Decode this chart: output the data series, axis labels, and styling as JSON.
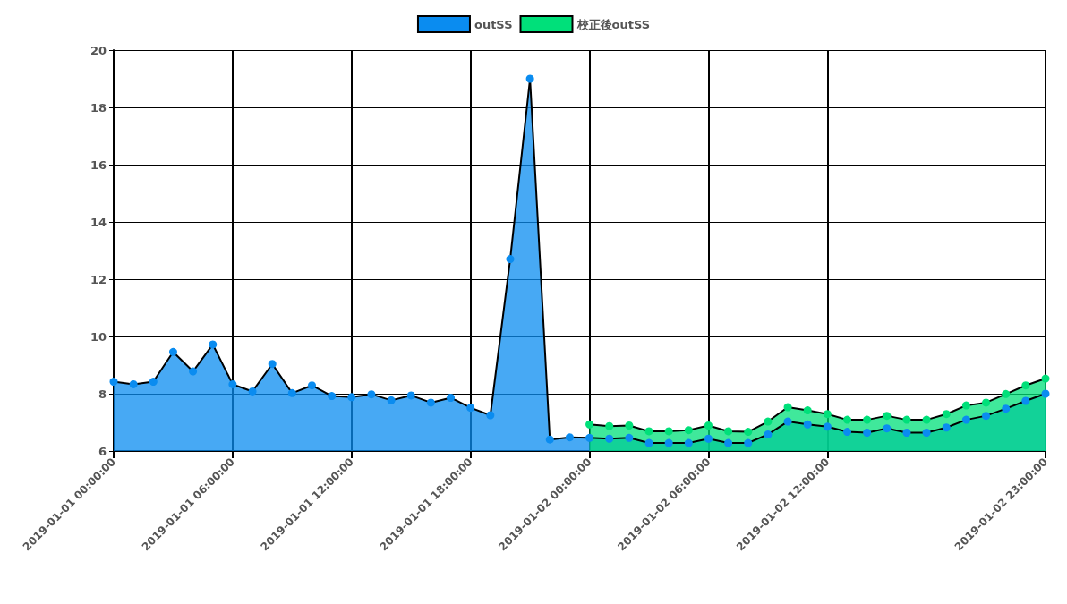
{
  "chart_data": {
    "type": "area",
    "xlim": [
      "2019-01-01T00:00",
      "2019-01-02T23:00"
    ],
    "xticks": [
      {
        "value": "2019-01-01T00:00",
        "label": "2019-01-01 00:00:00"
      },
      {
        "value": "2019-01-01T06:00",
        "label": "2019-01-01 06:00:00"
      },
      {
        "value": "2019-01-01T12:00",
        "label": "2019-01-01 12:00:00"
      },
      {
        "value": "2019-01-01T18:00",
        "label": "2019-01-01 18:00:00"
      },
      {
        "value": "2019-01-02T00:00",
        "label": "2019-01-02 00:00:00"
      },
      {
        "value": "2019-01-02T06:00",
        "label": "2019-01-02 06:00:00"
      },
      {
        "value": "2019-01-02T12:00",
        "label": "2019-01-02 12:00:00"
      },
      {
        "value": "2019-01-02T23:00",
        "label": "2019-01-02 23:00:00"
      }
    ],
    "ylim": [
      6,
      20
    ],
    "yticks": [
      6,
      8,
      10,
      12,
      14,
      16,
      18,
      20
    ],
    "grid": true,
    "legend": "top",
    "marker": "circle",
    "series": [
      {
        "name": "outSS",
        "color": "#0a8cf0",
        "x": [
          "2019-01-01T00:00",
          "2019-01-01T01:00",
          "2019-01-01T02:00",
          "2019-01-01T03:00",
          "2019-01-01T04:00",
          "2019-01-01T05:00",
          "2019-01-01T06:00",
          "2019-01-01T07:00",
          "2019-01-01T08:00",
          "2019-01-01T09:00",
          "2019-01-01T10:00",
          "2019-01-01T11:00",
          "2019-01-01T12:00",
          "2019-01-01T13:00",
          "2019-01-01T14:00",
          "2019-01-01T15:00",
          "2019-01-01T16:00",
          "2019-01-01T17:00",
          "2019-01-01T18:00",
          "2019-01-01T19:00",
          "2019-01-01T20:00",
          "2019-01-01T21:00",
          "2019-01-01T22:00",
          "2019-01-01T23:00",
          "2019-01-02T00:00",
          "2019-01-02T01:00",
          "2019-01-02T02:00",
          "2019-01-02T03:00",
          "2019-01-02T04:00",
          "2019-01-02T05:00",
          "2019-01-02T06:00",
          "2019-01-02T07:00",
          "2019-01-02T08:00",
          "2019-01-02T09:00",
          "2019-01-02T10:00",
          "2019-01-02T11:00",
          "2019-01-02T12:00",
          "2019-01-02T13:00",
          "2019-01-02T14:00",
          "2019-01-02T15:00",
          "2019-01-02T16:00",
          "2019-01-02T17:00",
          "2019-01-02T18:00",
          "2019-01-02T19:00",
          "2019-01-02T20:00",
          "2019-01-02T21:00",
          "2019-01-02T22:00",
          "2019-01-02T23:00"
        ],
        "values": [
          8.42,
          8.33,
          8.42,
          9.46,
          8.78,
          9.72,
          8.33,
          8.08,
          9.04,
          8.02,
          8.29,
          7.92,
          7.88,
          7.98,
          7.77,
          7.94,
          7.69,
          7.86,
          7.51,
          7.25,
          12.7,
          19.0,
          6.4,
          6.48,
          6.46,
          6.43,
          6.46,
          6.28,
          6.28,
          6.28,
          6.43,
          6.28,
          6.28,
          6.58,
          7.03,
          6.93,
          6.85,
          6.67,
          6.64,
          6.79,
          6.64,
          6.64,
          6.82,
          7.09,
          7.23,
          7.48,
          7.75,
          8.0
        ]
      },
      {
        "name": "校正後outSS",
        "color": "#00e07a",
        "x": [
          "2019-01-02T00:00",
          "2019-01-02T01:00",
          "2019-01-02T02:00",
          "2019-01-02T03:00",
          "2019-01-02T04:00",
          "2019-01-02T05:00",
          "2019-01-02T06:00",
          "2019-01-02T07:00",
          "2019-01-02T08:00",
          "2019-01-02T09:00",
          "2019-01-02T10:00",
          "2019-01-02T11:00",
          "2019-01-02T12:00",
          "2019-01-02T13:00",
          "2019-01-02T14:00",
          "2019-01-02T15:00",
          "2019-01-02T16:00",
          "2019-01-02T17:00",
          "2019-01-02T18:00",
          "2019-01-02T19:00",
          "2019-01-02T20:00",
          "2019-01-02T21:00",
          "2019-01-02T22:00",
          "2019-01-02T23:00"
        ],
        "values": [
          6.93,
          6.87,
          6.89,
          6.69,
          6.69,
          6.73,
          6.89,
          6.69,
          6.67,
          7.03,
          7.53,
          7.42,
          7.29,
          7.09,
          7.09,
          7.23,
          7.09,
          7.09,
          7.29,
          7.59,
          7.69,
          7.99,
          8.29,
          8.53
        ]
      }
    ]
  }
}
